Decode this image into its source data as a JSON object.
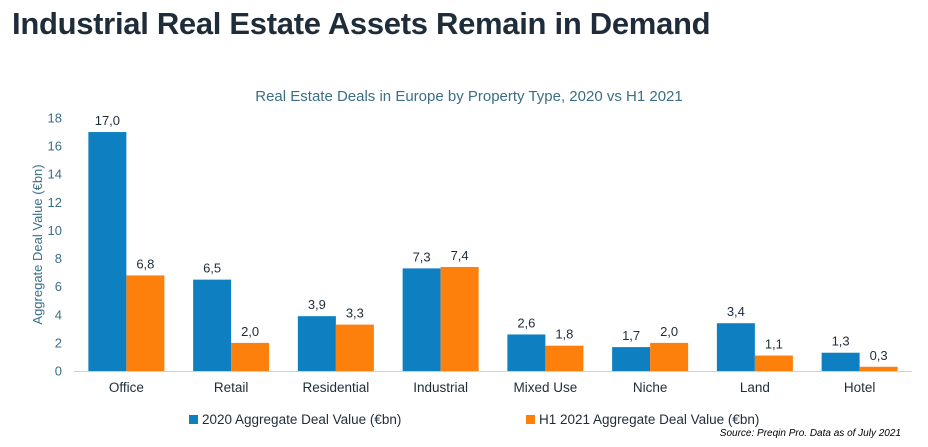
{
  "page": {
    "title": "Industrial Real Estate Assets Remain in Demand",
    "source": "Source: Preqin Pro. Data as of July 2021"
  },
  "colors": {
    "series_2020": "#0e80c1",
    "series_h1_2021": "#fd7f0c",
    "text_teal": "#3a6f85",
    "text_dark": "#1f2d3a",
    "axis_line": "#d0d0d0"
  },
  "chart_data": {
    "type": "bar",
    "title": "Real Estate Deals in Europe by Property Type, 2020 vs H1 2021",
    "xlabel": "",
    "ylabel": "Aggregate Deal Value (€bn)",
    "ylim": [
      0,
      18
    ],
    "yticks": [
      0,
      2,
      4,
      6,
      8,
      10,
      12,
      14,
      16,
      18
    ],
    "grid": false,
    "legend": "bottom",
    "categories": [
      "Office",
      "Retail",
      "Residential",
      "Industrial",
      "Mixed Use",
      "Niche",
      "Land",
      "Hotel"
    ],
    "series": [
      {
        "name": "2020 Aggregate Deal Value (€bn)",
        "values": [
          17.0,
          6.5,
          3.9,
          7.3,
          2.6,
          1.7,
          3.4,
          1.3
        ],
        "labels": [
          "17,0",
          "6,5",
          "3,9",
          "7,3",
          "2,6",
          "1,7",
          "3,4",
          "1,3"
        ]
      },
      {
        "name": "H1 2021 Aggregate Deal Value (€bn)",
        "values": [
          6.8,
          2.0,
          3.3,
          7.4,
          1.8,
          2.0,
          1.1,
          0.3
        ],
        "labels": [
          "6,8",
          "2,0",
          "3,3",
          "7,4",
          "1,8",
          "2,0",
          "1,1",
          "0,3"
        ]
      }
    ]
  }
}
